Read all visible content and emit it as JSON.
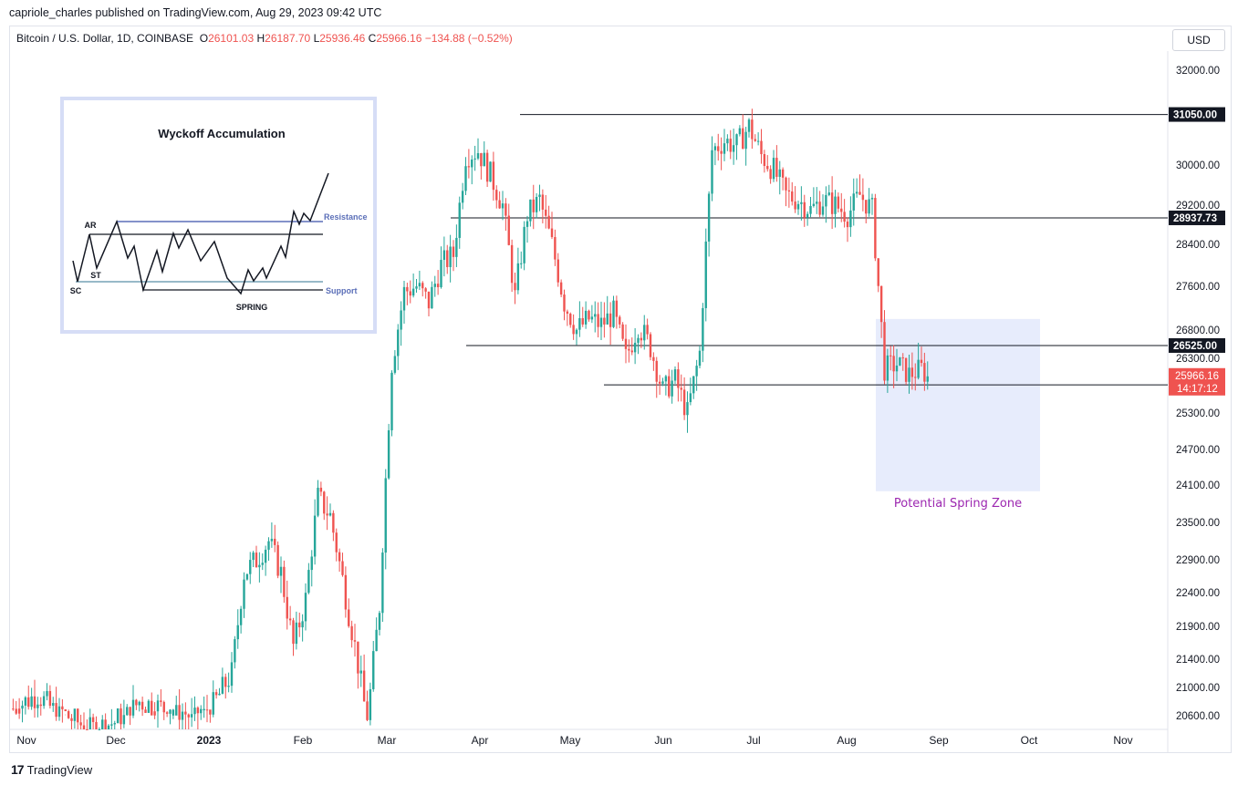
{
  "header": {
    "published": "capriole_charles published on TradingView.com, Aug 29, 2023 09:42 UTC",
    "symbol": "Bitcoin / U.S. Dollar, 1D, COINBASE",
    "o_label": "O",
    "o_value": "26101.03",
    "h_label": "H",
    "h_value": "26187.70",
    "l_label": "L",
    "l_value": "25936.46",
    "c_label": "C",
    "c_value": "25966.16",
    "change": "−134.88 (−0.52%)",
    "currency_button": "USD"
  },
  "footer": {
    "brand": "TradingView",
    "logo": "17"
  },
  "colors": {
    "up": "#26a69a",
    "down": "#ef5350",
    "zone_fill": "#e3e9fb",
    "zone_text": "#9c27b0",
    "inset_blue": "#5b6fb8"
  },
  "chart_data": {
    "type": "candlestick",
    "title": "Bitcoin / U.S. Dollar, 1D, COINBASE",
    "x_tick_labels": [
      "Nov",
      "Dec",
      "2023",
      "Feb",
      "Mar",
      "Apr",
      "May",
      "Jun",
      "Jul",
      "Aug",
      "Sep",
      "Oct",
      "Nov"
    ],
    "y_ticks": [
      32000,
      30000,
      29200,
      28400,
      27600,
      26800,
      26300,
      25300,
      24700,
      24100,
      23500,
      22900,
      22400,
      21900,
      21400,
      21000,
      20600
    ],
    "y_tick_labels": [
      "32000.00",
      "30000.00",
      "29200.00",
      "28400.00",
      "27600.00",
      "26800.00",
      "26300.00",
      "25300.00",
      "24700.00",
      "24100.00",
      "23500.00",
      "22900.00",
      "22400.00",
      "21900.00",
      "21400.00",
      "21000.00",
      "20600.00"
    ],
    "y_axis_scale": "log",
    "ylim": [
      20300,
      32400
    ],
    "price_path": [
      [
        1,
        20700
      ],
      [
        9,
        20900
      ],
      [
        18,
        20500
      ],
      [
        26,
        20300
      ],
      [
        34,
        20400
      ],
      [
        42,
        20800
      ],
      [
        50,
        20700
      ],
      [
        58,
        20500
      ],
      [
        64,
        20600
      ],
      [
        72,
        21200
      ],
      [
        76,
        22700
      ],
      [
        80,
        22900
      ],
      [
        84,
        23200
      ],
      [
        88,
        22700
      ],
      [
        92,
        21600
      ],
      [
        96,
        22300
      ],
      [
        100,
        23900
      ],
      [
        104,
        23600
      ],
      [
        108,
        22600
      ],
      [
        112,
        21600
      ],
      [
        116,
        20500
      ],
      [
        120,
        22200
      ],
      [
        124,
        26200
      ],
      [
        128,
        27500
      ],
      [
        132,
        27600
      ],
      [
        136,
        27300
      ],
      [
        140,
        28000
      ],
      [
        144,
        28200
      ],
      [
        148,
        30200
      ],
      [
        152,
        30300
      ],
      [
        156,
        29800
      ],
      [
        160,
        29200
      ],
      [
        164,
        27400
      ],
      [
        168,
        29000
      ],
      [
        172,
        29300
      ],
      [
        176,
        28400
      ],
      [
        180,
        27300
      ],
      [
        184,
        26800
      ],
      [
        188,
        27000
      ],
      [
        192,
        26900
      ],
      [
        196,
        27100
      ],
      [
        200,
        26300
      ],
      [
        204,
        26900
      ],
      [
        208,
        26500
      ],
      [
        212,
        25700
      ],
      [
        216,
        25900
      ],
      [
        220,
        25300
      ],
      [
        224,
        26400
      ],
      [
        228,
        30300
      ],
      [
        232,
        30500
      ],
      [
        236,
        30400
      ],
      [
        240,
        30800
      ],
      [
        244,
        30200
      ],
      [
        248,
        29900
      ],
      [
        252,
        29400
      ],
      [
        256,
        29300
      ],
      [
        260,
        29100
      ],
      [
        264,
        29300
      ],
      [
        268,
        29200
      ],
      [
        272,
        29000
      ],
      [
        276,
        29400
      ],
      [
        280,
        29100
      ],
      [
        284,
        26100
      ],
      [
        288,
        26200
      ],
      [
        292,
        26000
      ],
      [
        296,
        26100
      ],
      [
        298,
        25966
      ]
    ],
    "horizontal_levels": [
      {
        "price": 31050,
        "label": "31050.00"
      },
      {
        "price": 28937.73,
        "label": "28937.73"
      },
      {
        "price": 26525,
        "label": "26525.00"
      },
      {
        "price": 25810,
        "label": "25810.00"
      }
    ],
    "last_price": {
      "value": "25966.16",
      "countdown": "14:17:12"
    },
    "annotation": {
      "text": "Potential Spring Zone",
      "price_top": 27000,
      "price_bottom": 24000
    },
    "inset": {
      "title": "Wyckoff Accumulation",
      "labels": {
        "ar": "AR",
        "st": "ST",
        "sc": "SC",
        "spring": "SPRING",
        "resistance": "Resistance",
        "support": "Support"
      }
    }
  }
}
